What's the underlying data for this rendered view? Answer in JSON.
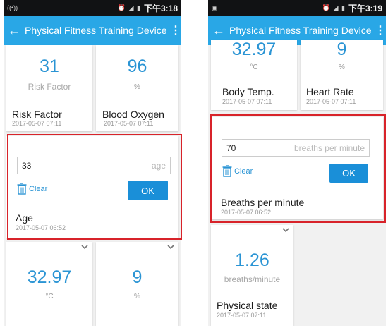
{
  "left": {
    "status": {
      "time": "下午3:18"
    },
    "appbar": {
      "title": "Physical Fitness Training Device"
    },
    "cards": {
      "risk": {
        "value": "31",
        "unit": "Risk Factor",
        "name": "Risk Factor",
        "date": "2017-05-07 07:11"
      },
      "oxygen": {
        "value": "96",
        "unit": "%",
        "name": "Blood Oxygen",
        "date": "2017-05-07 07:11"
      },
      "age": {
        "input_value": "33",
        "placeholder": "age",
        "clear_label": "Clear",
        "ok_label": "OK",
        "name": "Age",
        "date": "2017-05-07 06:52"
      },
      "temp": {
        "value": "32.97",
        "unit": "°C"
      },
      "heart": {
        "value": "9",
        "unit": "%"
      }
    }
  },
  "right": {
    "status": {
      "time": "下午3:19"
    },
    "appbar": {
      "title": "Physical Fitness Training Device"
    },
    "cards": {
      "temp": {
        "value": "32.97",
        "unit": "°C",
        "name": "Body Temp.",
        "date": "2017-05-07 07:11"
      },
      "heart": {
        "value": "9",
        "unit": "%",
        "name": "Heart Rate",
        "date": "2017-05-07 07:11"
      },
      "breaths": {
        "input_value": "70",
        "placeholder": "breaths per minute",
        "clear_label": "Clear",
        "ok_label": "OK",
        "name": "Breaths per minute",
        "date": "2017-05-07 06:52"
      },
      "physical": {
        "value": "1.26",
        "unit": "breaths/minute",
        "name": "Physical state",
        "date": "2017-05-07 07:11"
      }
    }
  },
  "colors": {
    "appbar": "#29a7e6",
    "value_text": "#2a94d4",
    "ok_button": "#1a8fd8",
    "highlight": "#d8232a"
  },
  "icons": [
    "back-arrow-icon",
    "overflow-menu-icon",
    "trash-icon",
    "chevron-down-icon"
  ]
}
